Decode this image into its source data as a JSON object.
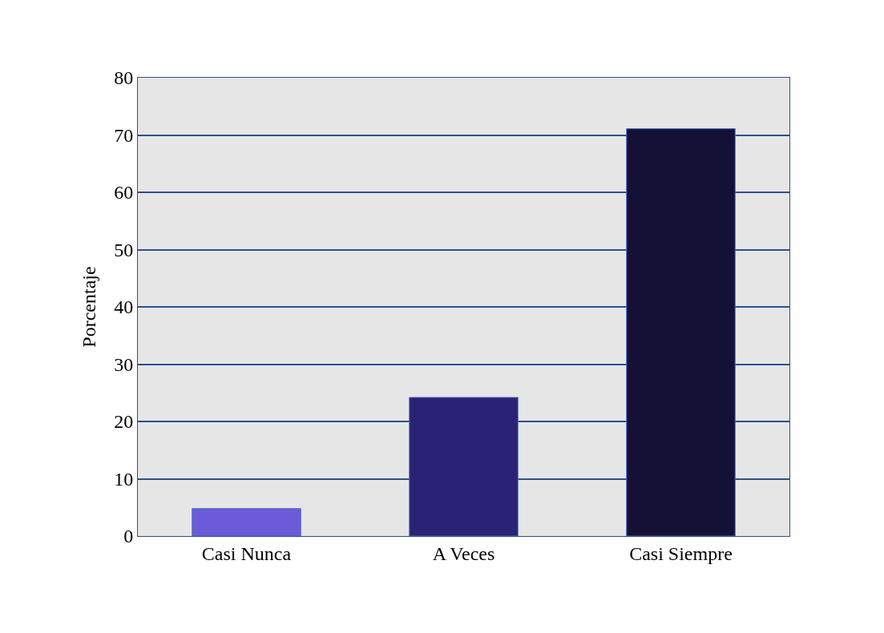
{
  "chart_data": {
    "type": "bar",
    "ylabel": "Porcentaje",
    "categories": [
      "Casi Nunca",
      "A Veces",
      "Casi Siempre"
    ],
    "values": [
      4.8,
      24.2,
      71.1
    ],
    "colors": [
      "#6b5bd9",
      "#2a2275",
      "#151036"
    ],
    "ylim": [
      0,
      80
    ],
    "yticks": [
      0,
      10,
      20,
      30,
      40,
      50,
      60,
      70,
      80
    ],
    "grid": "y",
    "legend": false
  }
}
